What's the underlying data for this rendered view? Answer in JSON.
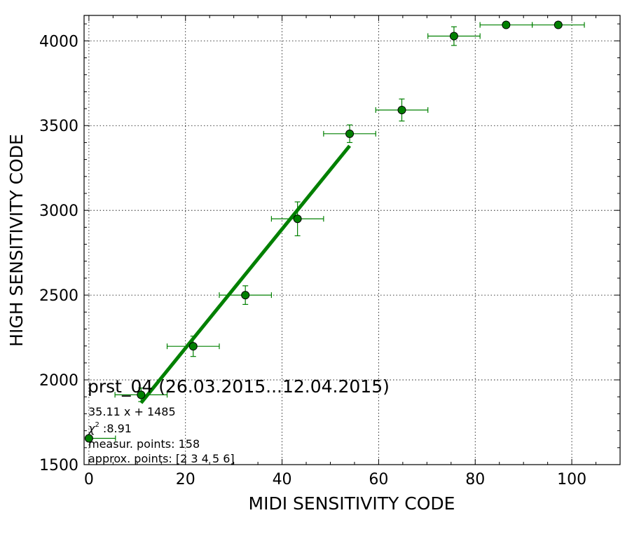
{
  "chart_data": {
    "type": "scatter",
    "xlabel": "MIDI SENSITIVITY CODE",
    "ylabel": "HIGH SENSITIVITY CODE",
    "xlim": [
      -1,
      110
    ],
    "ylim": [
      1500,
      4150
    ],
    "xticks": [
      0,
      20,
      40,
      60,
      80,
      100
    ],
    "xtick_labels": [
      "0",
      "20",
      "40",
      "60",
      "80",
      "100"
    ],
    "yticks": [
      1500,
      2000,
      2500,
      3000,
      3500,
      4000
    ],
    "ytick_labels": [
      "1500",
      "2000",
      "2500",
      "3000",
      "3500",
      "4000"
    ],
    "grid": true,
    "points": [
      {
        "x": 0,
        "y": 1655,
        "xerr": [
          0,
          5.5
        ],
        "yerr": 0
      },
      {
        "x": 10.8,
        "y": 1912,
        "xerr": 5.4,
        "yerr": 40
      },
      {
        "x": 21.6,
        "y": 2198,
        "xerr": 5.4,
        "yerr": 60
      },
      {
        "x": 32.4,
        "y": 2500,
        "xerr": 5.4,
        "yerr": 55
      },
      {
        "x": 43.2,
        "y": 2950,
        "xerr": 5.4,
        "yerr": 100
      },
      {
        "x": 54.0,
        "y": 3452,
        "xerr": 5.4,
        "yerr": 52
      },
      {
        "x": 64.8,
        "y": 3592,
        "xerr": 5.4,
        "yerr": 65
      },
      {
        "x": 75.6,
        "y": 4028,
        "xerr": 5.4,
        "yerr": 55
      },
      {
        "x": 86.4,
        "y": 4094,
        "xerr": 5.4,
        "yerr": 0
      },
      {
        "x": 97.2,
        "y": 4094,
        "xerr": 5.4,
        "yerr": 0
      }
    ],
    "fit": {
      "slope": 35.11,
      "intercept": 1485,
      "x_range": [
        10.8,
        54.0
      ]
    },
    "colors": {
      "marker": "#008000",
      "fit_line": "#008000",
      "grid": "#000000"
    },
    "annotations": {
      "title": "prst_04 (26.03.2015...12.04.2015)",
      "equation": "35.11 x + 1485",
      "chi_symbol": "χ",
      "chi_exponent": "2",
      "chi_value": " :8.91",
      "measur_points": "measur. points: 158",
      "approx_points": "approx. points: [2 3 4 5 6]"
    }
  }
}
